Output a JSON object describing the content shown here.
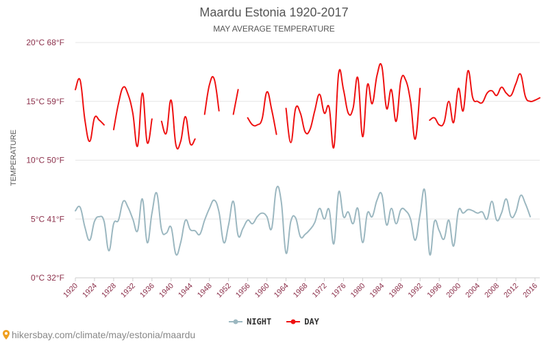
{
  "title": "Maardu Estonia 1920-2017",
  "subtitle": "MAY AVERAGE TEMPERATURE",
  "footer_text": "hikersbay.com/climate/may/estonia/maardu",
  "colors": {
    "day": "#ee1111",
    "night": "#9bb7c0",
    "grid": "#e5e5e5",
    "tick_text": "#8b2f4a",
    "footer": "#888888"
  },
  "chart_data": {
    "type": "line",
    "title": "Maardu Estonia 1920-2017",
    "subtitle": "MAY AVERAGE TEMPERATURE",
    "xlabel": "",
    "ylabel": "TEMPERATURE",
    "ylim": [
      0,
      20
    ],
    "xlim": [
      1920,
      2017
    ],
    "y_ticks": [
      {
        "value": 0,
        "label": "0°C 32°F"
      },
      {
        "value": 5,
        "label": "5°C 41°F"
      },
      {
        "value": 10,
        "label": "10°C 50°F"
      },
      {
        "value": 15,
        "label": "15°C 59°F"
      },
      {
        "value": 20,
        "label": "20°C 68°F"
      }
    ],
    "x_ticks": [
      1920,
      1924,
      1928,
      1932,
      1936,
      1940,
      1944,
      1948,
      1952,
      1956,
      1960,
      1964,
      1968,
      1972,
      1976,
      1980,
      1984,
      1988,
      1992,
      1996,
      2000,
      2004,
      2008,
      2012,
      2016
    ],
    "legend_position": "bottom",
    "grid": true,
    "series": [
      {
        "name": "NIGHT",
        "color": "#9bb7c0",
        "points": [
          [
            1920,
            5.7
          ],
          [
            1921,
            6.0
          ],
          [
            1922,
            4.3
          ],
          [
            1923,
            3.2
          ],
          [
            1924,
            4.8
          ],
          [
            1925,
            5.2
          ],
          [
            1926,
            4.8
          ],
          [
            1927,
            2.3
          ],
          [
            1928,
            4.6
          ],
          [
            1929,
            4.9
          ],
          [
            1930,
            6.5
          ],
          [
            1931,
            6.0
          ],
          [
            1932,
            5.0
          ],
          [
            1933,
            4.0
          ],
          [
            1934,
            6.7
          ],
          [
            1935,
            3.0
          ],
          [
            1936,
            5.5
          ],
          [
            1937,
            7.2
          ],
          [
            1938,
            4.1
          ],
          [
            1939,
            3.8
          ],
          [
            1940,
            4.3
          ],
          [
            1941,
            2.0
          ],
          [
            1942,
            3.0
          ],
          [
            1943,
            4.9
          ],
          [
            1944,
            4.1
          ],
          [
            1945,
            4.0
          ],
          [
            1946,
            3.7
          ],
          [
            1947,
            4.9
          ],
          [
            1948,
            5.9
          ],
          [
            1949,
            6.6
          ],
          [
            1950,
            5.6
          ],
          [
            1951,
            3.0
          ],
          [
            1952,
            4.5
          ],
          [
            1953,
            6.5
          ],
          [
            1954,
            3.6
          ],
          [
            1955,
            4.2
          ],
          [
            1956,
            4.9
          ],
          [
            1957,
            4.6
          ],
          [
            1958,
            5.2
          ],
          [
            1959,
            5.5
          ],
          [
            1960,
            5.2
          ],
          [
            1961,
            4.2
          ],
          [
            1962,
            7.6
          ],
          [
            1963,
            6.5
          ],
          [
            1964,
            2.1
          ],
          [
            1965,
            4.8
          ],
          [
            1966,
            5.1
          ],
          [
            1967,
            3.5
          ],
          [
            1968,
            3.7
          ],
          [
            1969,
            4.1
          ],
          [
            1970,
            4.7
          ],
          [
            1971,
            5.9
          ],
          [
            1972,
            5.0
          ],
          [
            1973,
            5.8
          ],
          [
            1974,
            2.9
          ],
          [
            1975,
            7.3
          ],
          [
            1976,
            5.2
          ],
          [
            1977,
            5.6
          ],
          [
            1978,
            4.6
          ],
          [
            1979,
            5.9
          ],
          [
            1980,
            3.0
          ],
          [
            1981,
            5.5
          ],
          [
            1982,
            5.2
          ],
          [
            1983,
            6.6
          ],
          [
            1984,
            7.1
          ],
          [
            1985,
            4.5
          ],
          [
            1986,
            5.9
          ],
          [
            1987,
            4.6
          ],
          [
            1988,
            5.8
          ],
          [
            1989,
            5.7
          ],
          [
            1990,
            5.0
          ],
          [
            1991,
            3.2
          ],
          [
            1992,
            5.4
          ],
          [
            1993,
            7.4
          ],
          [
            1994,
            2.0
          ],
          [
            1995,
            4.8
          ],
          [
            1996,
            4.0
          ],
          [
            1997,
            3.3
          ],
          [
            1998,
            4.9
          ],
          [
            1999,
            2.7
          ],
          [
            2000,
            5.7
          ],
          [
            2001,
            5.5
          ],
          [
            2002,
            5.8
          ],
          [
            2003,
            5.7
          ],
          [
            2004,
            5.5
          ],
          [
            2005,
            5.6
          ],
          [
            2006,
            5.0
          ],
          [
            2007,
            6.5
          ],
          [
            2008,
            4.9
          ],
          [
            2009,
            5.5
          ],
          [
            2010,
            6.7
          ],
          [
            2011,
            5.2
          ],
          [
            2012,
            5.6
          ],
          [
            2013,
            7.0
          ],
          [
            2014,
            6.3
          ],
          [
            2015,
            5.2
          ]
        ]
      },
      {
        "name": "DAY",
        "color": "#ee1111",
        "points": [
          [
            1920,
            16.0
          ],
          [
            1921,
            16.8
          ],
          [
            1922,
            13.4
          ],
          [
            1923,
            11.6
          ],
          [
            1924,
            13.6
          ],
          [
            1925,
            13.4
          ],
          [
            1926,
            13.0
          ],
          [
            1927,
            null
          ],
          [
            1928,
            12.6
          ],
          [
            1929,
            14.8
          ],
          [
            1930,
            16.2
          ],
          [
            1931,
            15.6
          ],
          [
            1932,
            14.0
          ],
          [
            1933,
            11.2
          ],
          [
            1934,
            15.7
          ],
          [
            1935,
            11.5
          ],
          [
            1936,
            13.5
          ],
          [
            1937,
            null
          ],
          [
            1938,
            13.3
          ],
          [
            1939,
            12.3
          ],
          [
            1940,
            15.1
          ],
          [
            1941,
            11.3
          ],
          [
            1942,
            11.6
          ],
          [
            1943,
            13.7
          ],
          [
            1944,
            11.4
          ],
          [
            1945,
            11.8
          ],
          [
            1946,
            null
          ],
          [
            1947,
            13.9
          ],
          [
            1948,
            16.4
          ],
          [
            1949,
            16.9
          ],
          [
            1950,
            14.2
          ],
          [
            1951,
            null
          ],
          [
            1952,
            null
          ],
          [
            1953,
            13.9
          ],
          [
            1954,
            16.0
          ],
          [
            1955,
            null
          ],
          [
            1956,
            13.6
          ],
          [
            1957,
            13.0
          ],
          [
            1958,
            13.0
          ],
          [
            1959,
            13.5
          ],
          [
            1960,
            15.8
          ],
          [
            1961,
            14.3
          ],
          [
            1962,
            12.2
          ],
          [
            1963,
            null
          ],
          [
            1964,
            14.4
          ],
          [
            1965,
            11.5
          ],
          [
            1966,
            14.4
          ],
          [
            1967,
            14.0
          ],
          [
            1968,
            12.4
          ],
          [
            1969,
            12.6
          ],
          [
            1970,
            14.2
          ],
          [
            1971,
            15.6
          ],
          [
            1972,
            14.0
          ],
          [
            1973,
            14.5
          ],
          [
            1974,
            11.1
          ],
          [
            1975,
            17.4
          ],
          [
            1976,
            16.0
          ],
          [
            1977,
            14.0
          ],
          [
            1978,
            14.4
          ],
          [
            1979,
            17.0
          ],
          [
            1980,
            12.0
          ],
          [
            1981,
            16.4
          ],
          [
            1982,
            14.8
          ],
          [
            1983,
            17.2
          ],
          [
            1984,
            18.0
          ],
          [
            1985,
            14.4
          ],
          [
            1986,
            16.0
          ],
          [
            1987,
            13.3
          ],
          [
            1988,
            16.8
          ],
          [
            1989,
            16.8
          ],
          [
            1990,
            15.0
          ],
          [
            1991,
            11.8
          ],
          [
            1992,
            16.1
          ],
          [
            1993,
            null
          ],
          [
            1994,
            13.4
          ],
          [
            1995,
            13.6
          ],
          [
            1996,
            13.0
          ],
          [
            1997,
            13.2
          ],
          [
            1998,
            15.0
          ],
          [
            1999,
            13.2
          ],
          [
            2000,
            16.1
          ],
          [
            2001,
            14.2
          ],
          [
            2002,
            17.6
          ],
          [
            2003,
            15.3
          ],
          [
            2004,
            15.0
          ],
          [
            2005,
            14.9
          ],
          [
            2006,
            15.7
          ],
          [
            2007,
            15.9
          ],
          [
            2008,
            15.5
          ],
          [
            2009,
            16.2
          ],
          [
            2010,
            15.7
          ],
          [
            2011,
            15.5
          ],
          [
            2012,
            16.5
          ],
          [
            2013,
            17.3
          ],
          [
            2014,
            15.4
          ],
          [
            2015,
            15.0
          ],
          [
            2016,
            15.1
          ],
          [
            2017,
            15.3
          ]
        ]
      }
    ]
  }
}
